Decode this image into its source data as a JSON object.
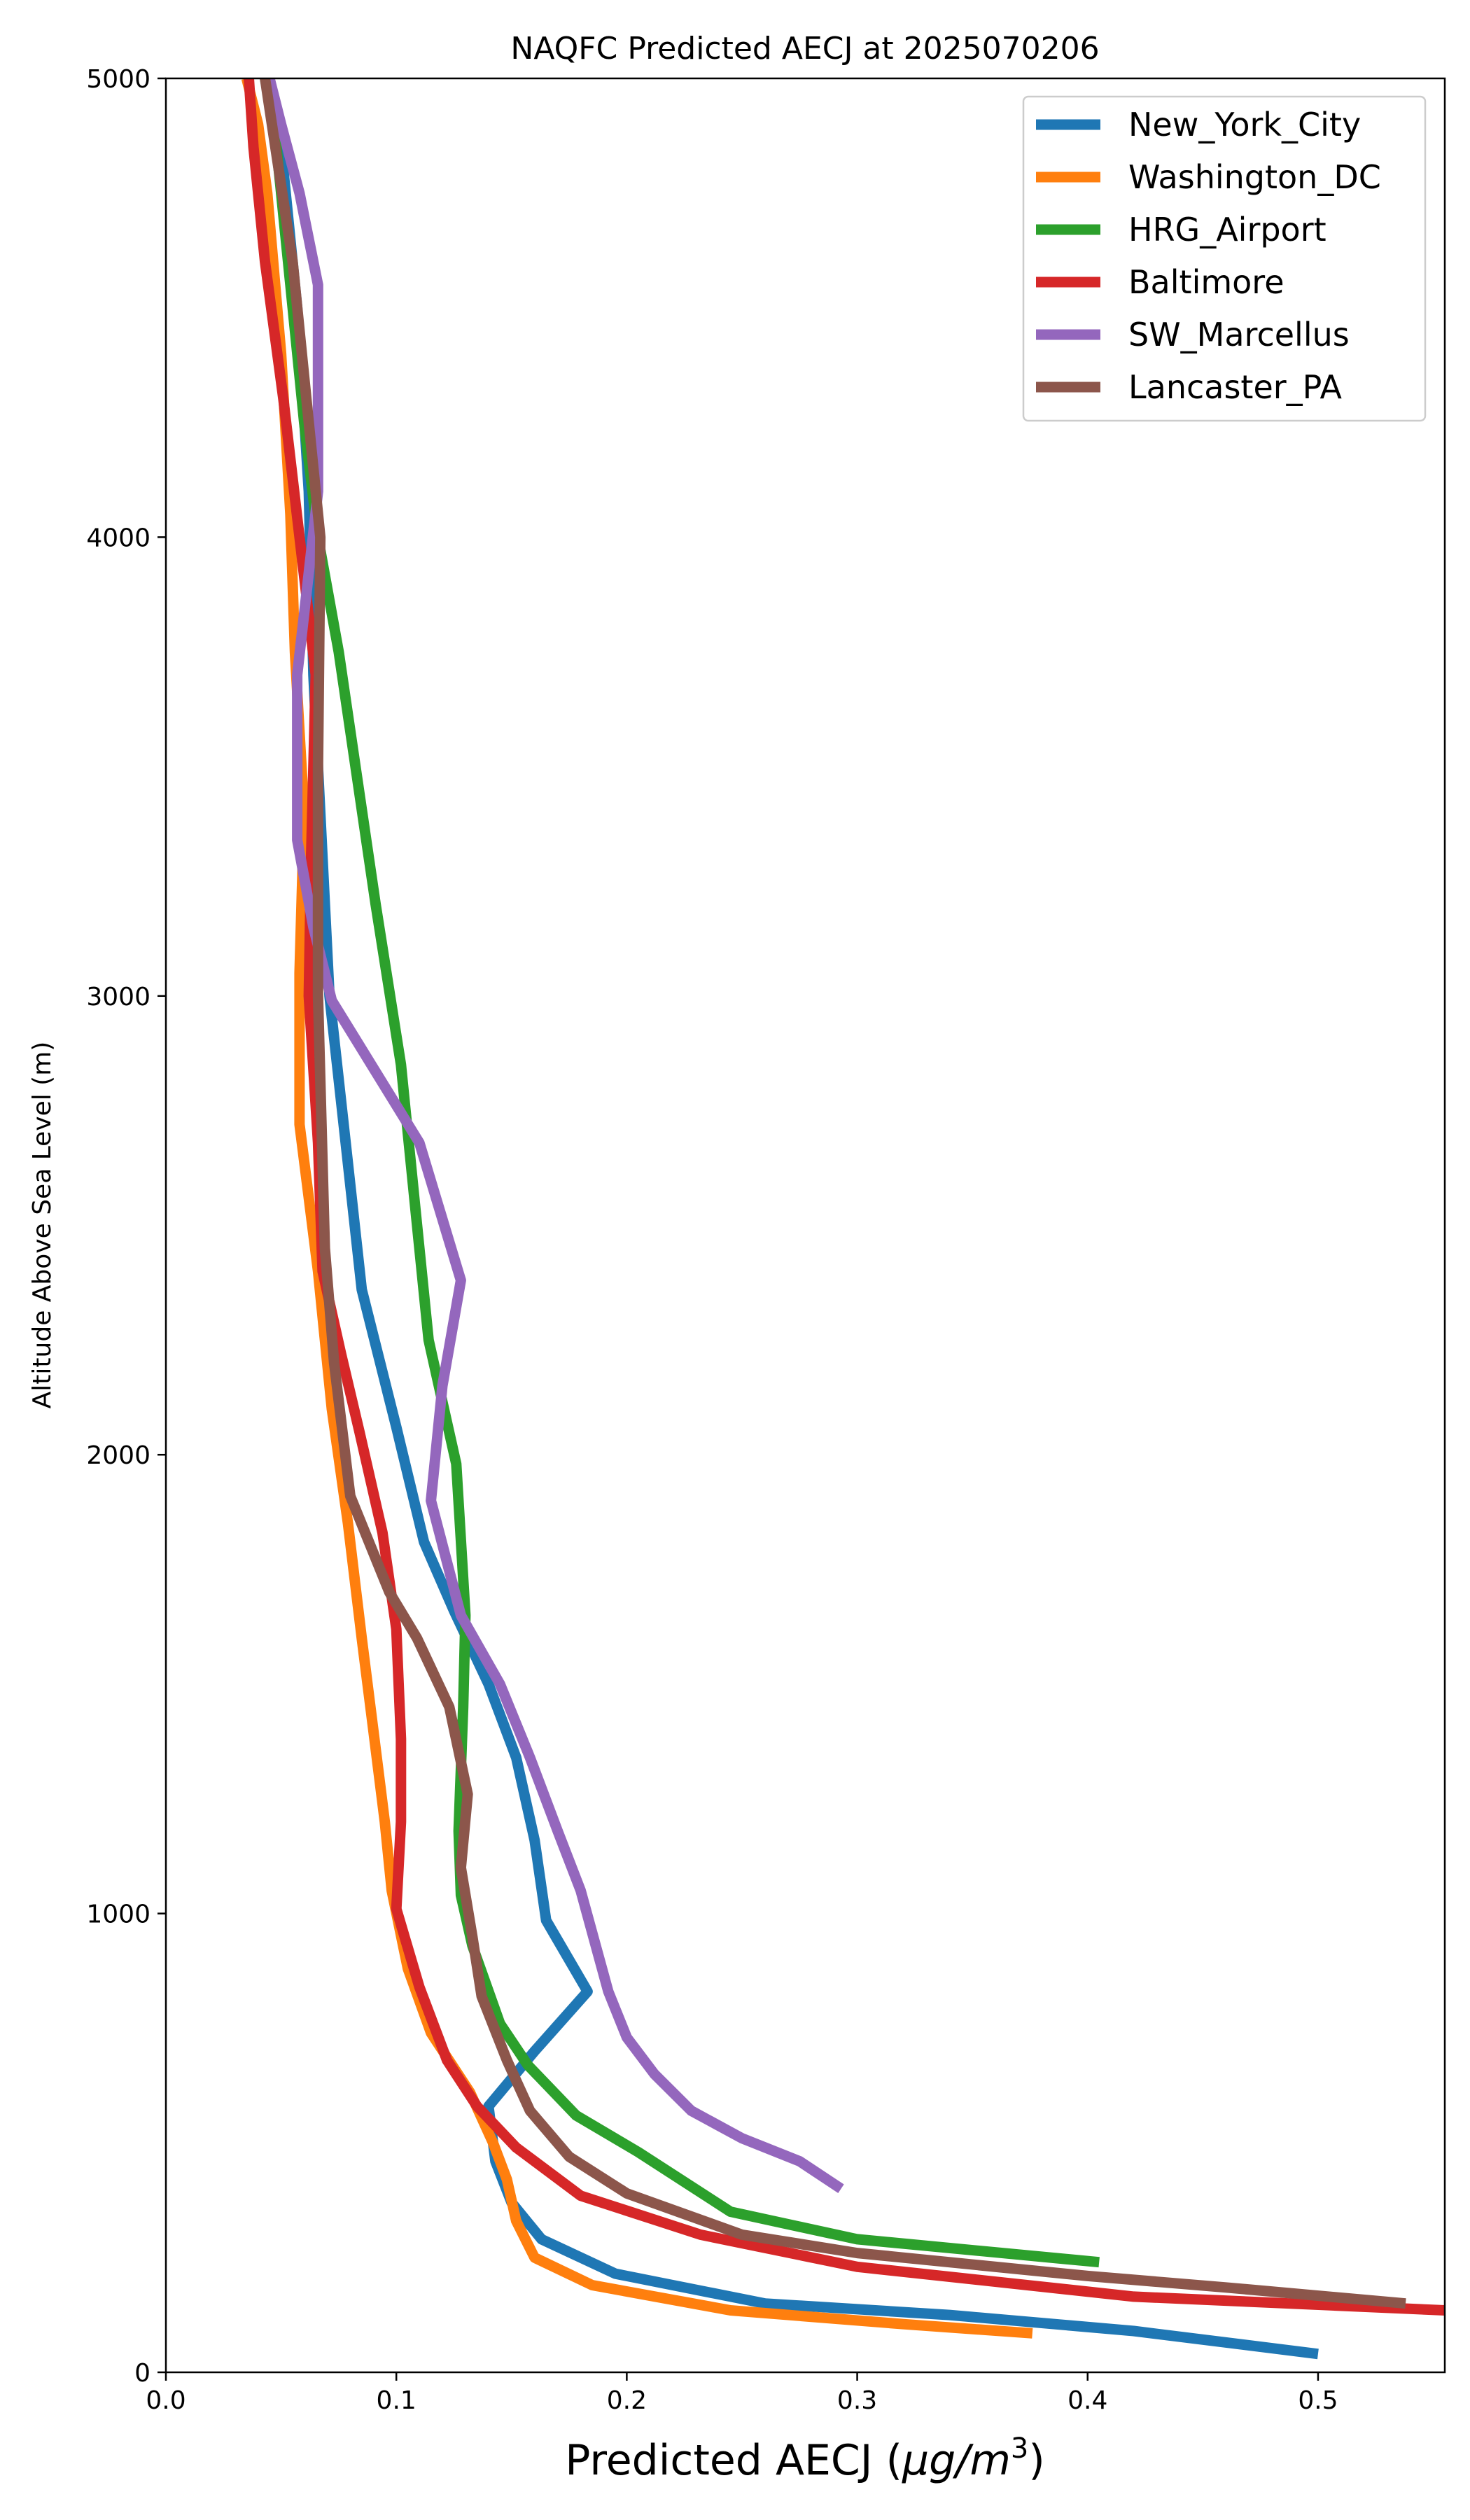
{
  "chart_data": {
    "type": "line",
    "title": "NAQFC Predicted AECJ at 2025070206",
    "xlabel_main": "Predicted AECJ (",
    "xlabel_unit": "μg/m",
    "xlabel_exp": "3",
    "xlabel_close": ")",
    "ylabel": "Altitude Above Sea Level (m)",
    "xlim": [
      0,
      0.555
    ],
    "ylim": [
      0,
      5000
    ],
    "xticks": [
      0.0,
      0.1,
      0.2,
      0.3,
      0.4,
      0.5
    ],
    "xtick_labels": [
      "0.0",
      "0.1",
      "0.2",
      "0.3",
      "0.4",
      "0.5"
    ],
    "yticks": [
      0,
      1000,
      2000,
      3000,
      4000,
      5000
    ],
    "ytick_labels": [
      "0",
      "1000",
      "2000",
      "3000",
      "4000",
      "5000"
    ],
    "grid": false,
    "legend_position": "top-right",
    "series": [
      {
        "name": "New_York_City",
        "color": "#1f77b4",
        "points": [
          [
            0.5,
            40
          ],
          [
            0.42,
            90
          ],
          [
            0.34,
            125
          ],
          [
            0.26,
            150
          ],
          [
            0.195,
            215
          ],
          [
            0.163,
            290
          ],
          [
            0.15,
            370
          ],
          [
            0.143,
            460
          ],
          [
            0.14,
            580
          ],
          [
            0.16,
            700
          ],
          [
            0.183,
            830
          ],
          [
            0.165,
            985
          ],
          [
            0.16,
            1160
          ],
          [
            0.152,
            1340
          ],
          [
            0.14,
            1500
          ],
          [
            0.125,
            1660
          ],
          [
            0.112,
            1810
          ],
          [
            0.1,
            2060
          ],
          [
            0.085,
            2360
          ],
          [
            0.078,
            2680
          ],
          [
            0.071,
            3000
          ],
          [
            0.068,
            3300
          ],
          [
            0.064,
            3700
          ],
          [
            0.062,
            4100
          ],
          [
            0.057,
            4500
          ],
          [
            0.05,
            4850
          ],
          [
            0.045,
            5000
          ]
        ]
      },
      {
        "name": "Washington_DC",
        "color": "#ff7f0e",
        "points": [
          [
            0.376,
            85
          ],
          [
            0.32,
            105
          ],
          [
            0.245,
            135
          ],
          [
            0.185,
            190
          ],
          [
            0.16,
            250
          ],
          [
            0.152,
            330
          ],
          [
            0.148,
            420
          ],
          [
            0.142,
            500
          ],
          [
            0.132,
            610
          ],
          [
            0.115,
            740
          ],
          [
            0.105,
            880
          ],
          [
            0.098,
            1050
          ],
          [
            0.095,
            1200
          ],
          [
            0.09,
            1400
          ],
          [
            0.085,
            1600
          ],
          [
            0.079,
            1850
          ],
          [
            0.072,
            2100
          ],
          [
            0.066,
            2400
          ],
          [
            0.058,
            2720
          ],
          [
            0.058,
            3050
          ],
          [
            0.06,
            3400
          ],
          [
            0.056,
            3750
          ],
          [
            0.054,
            4050
          ],
          [
            0.05,
            4400
          ],
          [
            0.044,
            4750
          ],
          [
            0.04,
            4900
          ],
          [
            0.035,
            5000
          ]
        ]
      },
      {
        "name": "HRG_Airport",
        "color": "#2ca02c",
        "points": [
          [
            0.405,
            240
          ],
          [
            0.3,
            290
          ],
          [
            0.245,
            350
          ],
          [
            0.205,
            480
          ],
          [
            0.178,
            560
          ],
          [
            0.157,
            670
          ],
          [
            0.145,
            760
          ],
          [
            0.133,
            930
          ],
          [
            0.128,
            1040
          ],
          [
            0.127,
            1180
          ],
          [
            0.129,
            1450
          ],
          [
            0.13,
            1650
          ],
          [
            0.126,
            1980
          ],
          [
            0.114,
            2250
          ],
          [
            0.108,
            2550
          ],
          [
            0.102,
            2850
          ],
          [
            0.091,
            3200
          ],
          [
            0.075,
            3750
          ],
          [
            0.066,
            4000
          ],
          [
            0.06,
            4250
          ],
          [
            0.054,
            4550
          ],
          [
            0.047,
            4900
          ],
          [
            0.043,
            5000
          ]
        ]
      },
      {
        "name": "Baltimore",
        "color": "#d62728",
        "points": [
          [
            0.555,
            135
          ],
          [
            0.42,
            165
          ],
          [
            0.3,
            230
          ],
          [
            0.232,
            300
          ],
          [
            0.18,
            385
          ],
          [
            0.152,
            490
          ],
          [
            0.135,
            580
          ],
          [
            0.122,
            680
          ],
          [
            0.11,
            840
          ],
          [
            0.1,
            1010
          ],
          [
            0.102,
            1200
          ],
          [
            0.102,
            1380
          ],
          [
            0.1,
            1620
          ],
          [
            0.094,
            1830
          ],
          [
            0.084,
            2050
          ],
          [
            0.076,
            2220
          ],
          [
            0.068,
            2400
          ],
          [
            0.066,
            2680
          ],
          [
            0.062,
            3000
          ],
          [
            0.063,
            3300
          ],
          [
            0.065,
            3700
          ],
          [
            0.058,
            4000
          ],
          [
            0.051,
            4300
          ],
          [
            0.043,
            4600
          ],
          [
            0.038,
            4850
          ],
          [
            0.036,
            5000
          ]
        ]
      },
      {
        "name": "SW_Marcellus",
        "color": "#9467bd",
        "points": [
          [
            0.293,
            400
          ],
          [
            0.275,
            460
          ],
          [
            0.25,
            510
          ],
          [
            0.228,
            570
          ],
          [
            0.212,
            650
          ],
          [
            0.2,
            730
          ],
          [
            0.192,
            830
          ],
          [
            0.18,
            1050
          ],
          [
            0.17,
            1180
          ],
          [
            0.158,
            1340
          ],
          [
            0.145,
            1500
          ],
          [
            0.128,
            1650
          ],
          [
            0.115,
            1900
          ],
          [
            0.12,
            2150
          ],
          [
            0.128,
            2380
          ],
          [
            0.11,
            2680
          ],
          [
            0.072,
            2990
          ],
          [
            0.064,
            3150
          ],
          [
            0.057,
            3340
          ],
          [
            0.057,
            3700
          ],
          [
            0.066,
            4100
          ],
          [
            0.066,
            4550
          ],
          [
            0.058,
            4750
          ],
          [
            0.05,
            4900
          ],
          [
            0.045,
            5000
          ]
        ]
      },
      {
        "name": "Lancaster_PA",
        "color": "#8c564b",
        "points": [
          [
            0.538,
            150
          ],
          [
            0.46,
            185
          ],
          [
            0.4,
            210
          ],
          [
            0.3,
            260
          ],
          [
            0.25,
            300
          ],
          [
            0.2,
            390
          ],
          [
            0.175,
            470
          ],
          [
            0.158,
            570
          ],
          [
            0.148,
            680
          ],
          [
            0.137,
            820
          ],
          [
            0.133,
            950
          ],
          [
            0.128,
            1100
          ],
          [
            0.131,
            1260
          ],
          [
            0.123,
            1450
          ],
          [
            0.109,
            1600
          ],
          [
            0.097,
            1700
          ],
          [
            0.08,
            1910
          ],
          [
            0.073,
            2200
          ],
          [
            0.069,
            2450
          ],
          [
            0.066,
            3000
          ],
          [
            0.066,
            3500
          ],
          [
            0.067,
            4000
          ],
          [
            0.061,
            4300
          ],
          [
            0.055,
            4600
          ],
          [
            0.046,
            4900
          ],
          [
            0.043,
            5000
          ]
        ]
      }
    ]
  }
}
